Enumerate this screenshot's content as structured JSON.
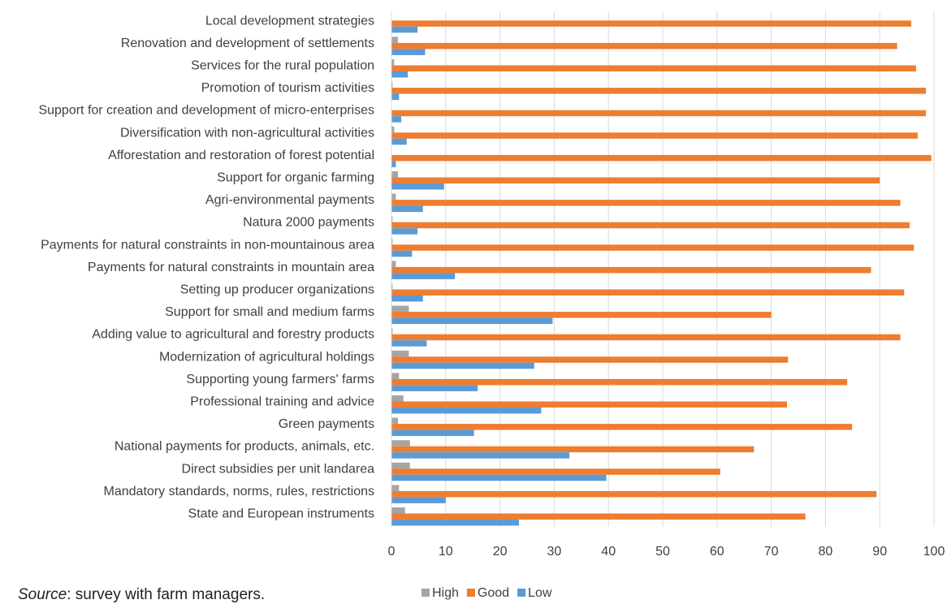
{
  "chart_data": {
    "type": "bar",
    "orientation": "horizontal",
    "categories": [
      "Local development strategies",
      "Renovation and development of settlements",
      "Services for the rural population",
      "Promotion of tourism activities",
      "Support for creation and development of micro-enterprises",
      "Diversification with non-agricultural activities",
      "Afforestation and restoration of forest potential",
      "Support for organic farming",
      "Agri-environmental payments",
      "Natura 2000 payments",
      "Payments for natural constraints in non-mountainous area",
      "Payments for natural constraints in mountain area",
      "Setting up producer organizations",
      "Support for small and medium farms",
      "Adding value to agricultural and forestry products",
      "Modernization of agricultural holdings",
      "Supporting young farmers' farms",
      "Professional training and advice",
      "Green payments",
      "National payments for products, animals, etc.",
      "Direct subsidies per unit landarea",
      "Mandatory standards, norms, rules, restrictions",
      "State and European instruments"
    ],
    "series": [
      {
        "name": "High",
        "color": "#a5a5a5",
        "values": [
          0,
          1.2,
          0.5,
          0.2,
          0,
          0.5,
          0,
          1.2,
          0.8,
          0.2,
          0.2,
          0.8,
          0.2,
          3.2,
          0.2,
          3.2,
          1.4,
          2.2,
          1.2,
          3.4,
          3.4,
          1.4,
          2.5
        ]
      },
      {
        "name": "Good",
        "color": "#ed7d31",
        "values": [
          95.8,
          93.2,
          96.7,
          98.5,
          98.5,
          97,
          99.5,
          90,
          93.8,
          95.5,
          96.3,
          88.4,
          94.5,
          70,
          93.8,
          73.1,
          84,
          72.9,
          84.9,
          66.8,
          60.6,
          89.4,
          76.3
        ]
      },
      {
        "name": "Low",
        "color": "#5b9bd5",
        "values": [
          4.8,
          6.2,
          3,
          1.4,
          1.8,
          2.8,
          0.8,
          9.7,
          5.8,
          4.8,
          3.8,
          11.7,
          5.8,
          29.7,
          6.5,
          26.3,
          15.9,
          27.6,
          15.2,
          32.8,
          39.6,
          10,
          23.5
        ]
      }
    ],
    "xlim": [
      0,
      100
    ],
    "xticks": [
      "0",
      "10",
      "20",
      "30",
      "40",
      "50",
      "60",
      "70",
      "80",
      "90",
      "100"
    ],
    "grid": true,
    "legend_position": "bottom"
  },
  "source": {
    "label": "Source",
    "text": ": survey with farm managers."
  }
}
